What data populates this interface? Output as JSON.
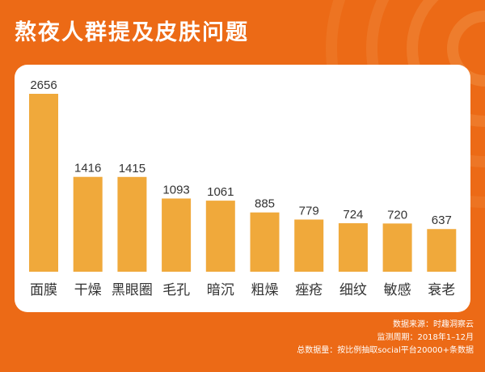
{
  "chart_data": {
    "type": "bar",
    "title": "熬夜人群提及皮肤问题",
    "categories": [
      "面膜",
      "干燥",
      "黑眼圈",
      "毛孔",
      "暗沉",
      "粗燥",
      "痤疮",
      "细纹",
      "敏感",
      "衰老"
    ],
    "values": [
      2656,
      1416,
      1415,
      1093,
      1061,
      885,
      779,
      724,
      720,
      637
    ],
    "ylim": [
      0,
      2656
    ],
    "grid": false,
    "bar_color": "#f0a93b"
  },
  "footer": {
    "line1": "数据来源：时趣洞察云",
    "line2": "监测周期：2018年1–12月",
    "line3": "总数据量：按比例抽取social平台20000+条数据"
  },
  "colors": {
    "background": "#ec6a16",
    "card": "#ffffff",
    "text": "#333333"
  }
}
